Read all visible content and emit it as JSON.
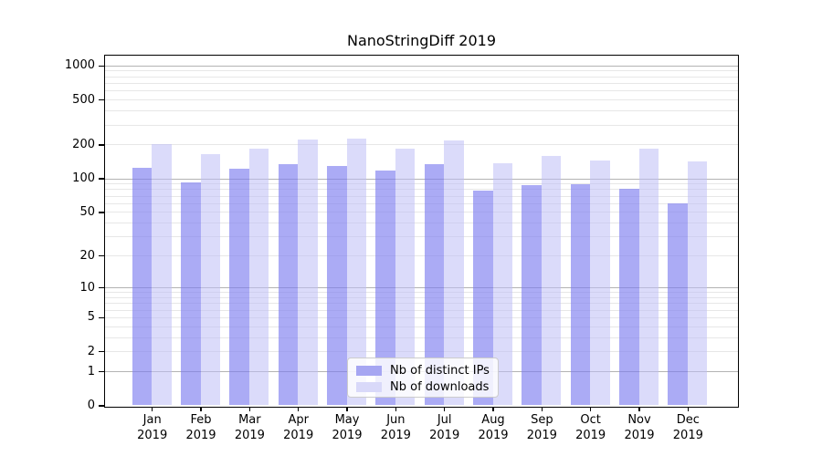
{
  "chart_data": {
    "type": "bar",
    "title": "NanoStringDiff 2019",
    "months": [
      "Jan",
      "Feb",
      "Mar",
      "Apr",
      "May",
      "Jun",
      "Jul",
      "Aug",
      "Sep",
      "Oct",
      "Nov",
      "Dec"
    ],
    "year_label": "2019",
    "series": [
      {
        "name": "Nb of distinct IPs",
        "color": "#a6a6f2",
        "fill": "rgba(126,126,240,0.65)",
        "values": [
          123,
          92,
          122,
          134,
          129,
          118,
          134,
          77,
          87,
          88,
          80,
          60
        ]
      },
      {
        "name": "Nb of downloads",
        "color": "#d9d9f9",
        "fill": "rgba(190,190,245,0.55)",
        "values": [
          200,
          163,
          182,
          223,
          227,
          185,
          219,
          137,
          158,
          144,
          185,
          142
        ]
      }
    ],
    "y_axis": {
      "scale": "log1p",
      "tick_values": [
        0,
        1,
        2,
        5,
        10,
        20,
        50,
        100,
        200,
        500,
        1000
      ]
    },
    "grid": {
      "major_values": [
        1,
        10,
        100,
        1000
      ],
      "minor_values": [
        2,
        3,
        4,
        5,
        6,
        7,
        8,
        9,
        20,
        30,
        40,
        50,
        60,
        70,
        80,
        90,
        200,
        300,
        400,
        500,
        600,
        700,
        800,
        900
      ]
    },
    "legend_position": "lower center"
  },
  "colors": {
    "background": "#ffffff",
    "axis": "#000000",
    "grid_major": "#b3b3b3",
    "grid_minor": "#e7e7e7",
    "text": "#000000",
    "legend_border": "#cccccc"
  }
}
